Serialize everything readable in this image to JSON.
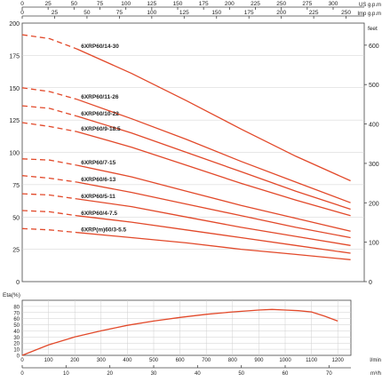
{
  "chart_data": [
    {
      "type": "line",
      "title": "",
      "x_top_axes": [
        {
          "label": "US g.p.m",
          "ticks": [
            "0",
            "25",
            "50",
            "75",
            "100",
            "125",
            "150",
            "175",
            "200",
            "225",
            "250",
            "275",
            "300"
          ],
          "max": 330
        },
        {
          "label": "Imp g.p.m",
          "ticks": [
            "0",
            "25",
            "50",
            "75",
            "100",
            "125",
            "150",
            "175",
            "200",
            "225",
            "250"
          ],
          "max": 264
        }
      ],
      "xlim": [
        0,
        1250
      ],
      "ylim": [
        0,
        200
      ],
      "y_ticks": [
        "0",
        "25",
        "50",
        "75",
        "100",
        "125",
        "150",
        "175",
        "200"
      ],
      "y_right": {
        "label": "feet",
        "ticks": [
          "0",
          "100",
          "200",
          "300",
          "400",
          "500",
          "600"
        ],
        "max": 656
      },
      "grid": true,
      "series": [
        {
          "name": "6XRP60/14-30",
          "x": [
            0,
            100,
            200,
            400,
            600,
            800,
            1000,
            1200
          ],
          "y": [
            191,
            188,
            180,
            161,
            140,
            118,
            97,
            78
          ]
        },
        {
          "name": "6XRP60/11-26",
          "x": [
            0,
            100,
            200,
            400,
            600,
            800,
            1000,
            1200
          ],
          "y": [
            150,
            147,
            141,
            126,
            110,
            93,
            77,
            61
          ]
        },
        {
          "name": "6XRP60/10-22",
          "x": [
            0,
            100,
            200,
            400,
            600,
            800,
            1000,
            1200
          ],
          "y": [
            136,
            134,
            128,
            115,
            100,
            85,
            70,
            56
          ]
        },
        {
          "name": "6XRP60/9-18.5",
          "x": [
            0,
            100,
            200,
            400,
            600,
            800,
            1000,
            1200
          ],
          "y": [
            123,
            120,
            116,
            104,
            90,
            76,
            63,
            51
          ]
        },
        {
          "name": "6XRP60/7-15",
          "x": [
            0,
            100,
            200,
            400,
            600,
            800,
            1000,
            1200
          ],
          "y": [
            95,
            94,
            90,
            81,
            70,
            59,
            49,
            39
          ]
        },
        {
          "name": "6XRP60/6-13",
          "x": [
            0,
            100,
            200,
            400,
            600,
            800,
            1000,
            1200
          ],
          "y": [
            82,
            80,
            77,
            69,
            60,
            51,
            42,
            34
          ]
        },
        {
          "name": "6XRP60/5-11",
          "x": [
            0,
            100,
            200,
            400,
            600,
            800,
            1000,
            1200
          ],
          "y": [
            68,
            67,
            64,
            58,
            50,
            42,
            35,
            28
          ]
        },
        {
          "name": "6XRP60/4-7.5",
          "x": [
            0,
            100,
            200,
            400,
            600,
            800,
            1000,
            1200
          ],
          "y": [
            55,
            54,
            51,
            46,
            40,
            34,
            28,
            22
          ]
        },
        {
          "name": "6XRP(m)60/3-5.5",
          "x": [
            0,
            100,
            200,
            400,
            600,
            800,
            1000,
            1200
          ],
          "y": [
            41,
            40,
            38,
            34,
            30,
            25,
            21,
            17
          ]
        }
      ]
    },
    {
      "type": "line",
      "ylabel": "Eta(%)",
      "xlabel": "l/min",
      "xlim": [
        0,
        1250
      ],
      "ylim": [
        0,
        90
      ],
      "x_ticks": [
        "0",
        "100",
        "200",
        "300",
        "400",
        "500",
        "600",
        "700",
        "800",
        "900",
        "1000",
        "1100",
        "1200"
      ],
      "y_ticks": [
        "0",
        "10",
        "20",
        "30",
        "40",
        "50",
        "60",
        "70",
        "80"
      ],
      "x2_label": "m³/h",
      "x2_ticks": [
        "0",
        "10",
        "20",
        "30",
        "40",
        "50",
        "60",
        "70"
      ],
      "x2_max": 75,
      "grid": true,
      "series": [
        {
          "x": [
            0,
            100,
            200,
            300,
            400,
            500,
            600,
            700,
            800,
            900,
            950,
            1000,
            1050,
            1100,
            1150,
            1200
          ],
          "y": [
            0,
            17,
            30,
            40,
            49,
            56,
            62,
            67,
            71,
            74,
            75,
            74,
            73,
            71,
            64,
            56
          ]
        }
      ]
    }
  ],
  "colors": {
    "curve": "#e2492a",
    "grid": "#cfcfcf",
    "axis": "#444444"
  }
}
